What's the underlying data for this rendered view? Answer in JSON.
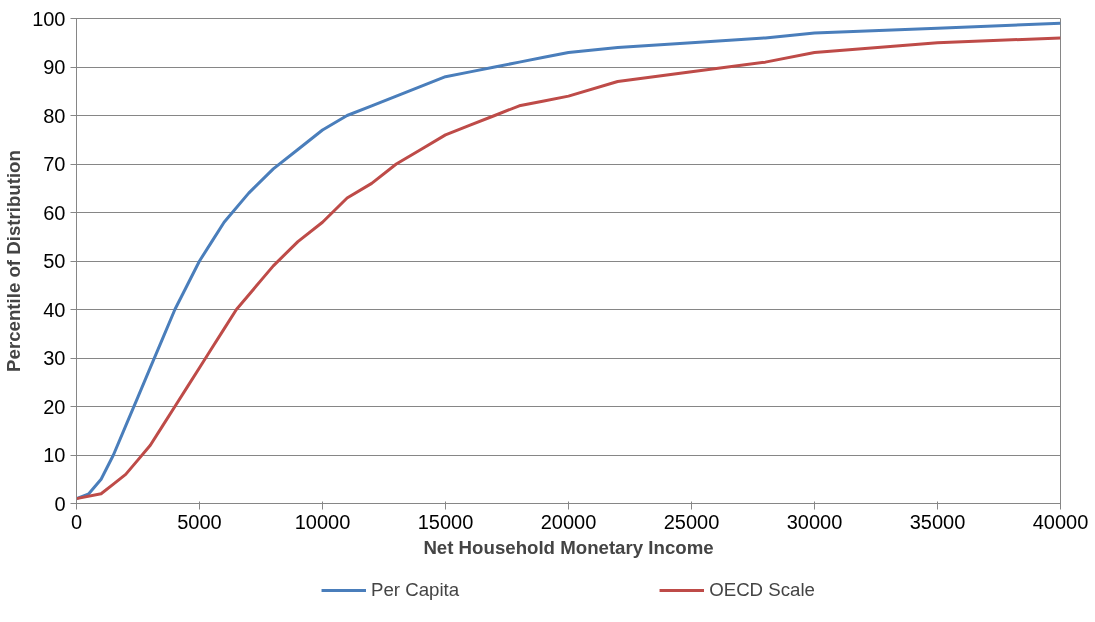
{
  "chart_data": {
    "type": "line",
    "xlabel": "Net Household Monetary Income",
    "ylabel": "Percentile of Distribution",
    "xlim": [
      0,
      40000
    ],
    "xticks": [
      0,
      5000,
      10000,
      15000,
      20000,
      25000,
      30000,
      35000,
      40000
    ],
    "ylim": [
      0,
      100
    ],
    "yticks": [
      0,
      10,
      20,
      30,
      40,
      50,
      60,
      70,
      80,
      90,
      100
    ],
    "grid": "y",
    "legend": "bottom",
    "marker": "none",
    "line_style": "solid",
    "series": [
      {
        "name": "Per Capita",
        "color": "#4a7ebb",
        "x": [
          0,
          500,
          1000,
          1500,
          2000,
          2500,
          3000,
          3500,
          4000,
          4500,
          5000,
          5500,
          6000,
          7000,
          8000,
          9000,
          10000,
          11000,
          12000,
          13000,
          14000,
          15000,
          16000,
          17000,
          18000,
          19000,
          20000,
          22000,
          25000,
          28000,
          30000,
          35000,
          40000
        ],
        "values": [
          1,
          2,
          5,
          10,
          16,
          22,
          28,
          34,
          40,
          45,
          50,
          54,
          58,
          64,
          69,
          73,
          77,
          80,
          82,
          84,
          86,
          88,
          89,
          90,
          91,
          92,
          93,
          94,
          95,
          96,
          97,
          98,
          99
        ]
      },
      {
        "name": "OECD Scale",
        "color": "#be4b48",
        "x": [
          0,
          1000,
          1500,
          2000,
          2500,
          3000,
          3500,
          4000,
          4500,
          5000,
          5500,
          6000,
          6500,
          7000,
          7500,
          8000,
          9000,
          10000,
          11000,
          12000,
          13000,
          14000,
          15000,
          16000,
          17000,
          18000,
          19000,
          20000,
          22000,
          25000,
          28000,
          30000,
          35000,
          40000
        ],
        "values": [
          1,
          2,
          4,
          6,
          9,
          12,
          16,
          20,
          24,
          28,
          32,
          36,
          40,
          43,
          46,
          49,
          54,
          58,
          63,
          66,
          70,
          73,
          76,
          78,
          80,
          82,
          83,
          84,
          87,
          89,
          91,
          93,
          95,
          96
        ]
      }
    ]
  }
}
